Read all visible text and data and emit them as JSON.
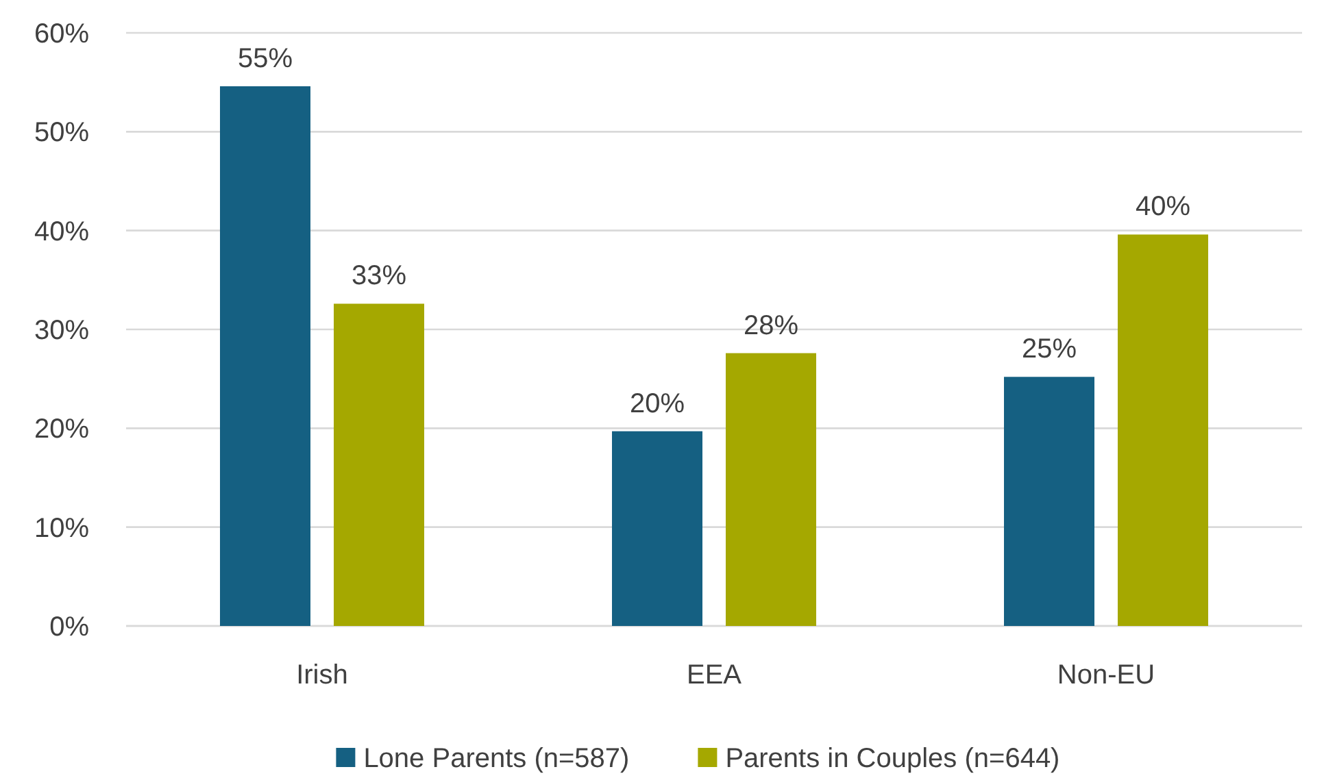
{
  "chart_data": {
    "type": "bar",
    "categories": [
      "Irish",
      "EEA",
      "Non-EU"
    ],
    "series": [
      {
        "name": "Lone Parents (n=587)",
        "color": "#156082",
        "values": [
          54.6,
          19.7,
          25.2
        ],
        "value_labels": [
          "55%",
          "20%",
          "25%"
        ]
      },
      {
        "name": "Parents in Couples (n=644)",
        "color": "#a5a800",
        "values": [
          32.6,
          27.6,
          39.6
        ],
        "value_labels": [
          "33%",
          "28%",
          "40%"
        ]
      }
    ],
    "ylim": [
      0,
      60
    ],
    "yticks": [
      {
        "value": 0,
        "label": "0%"
      },
      {
        "value": 10,
        "label": "10%"
      },
      {
        "value": 20,
        "label": "20%"
      },
      {
        "value": 30,
        "label": "30%"
      },
      {
        "value": 40,
        "label": "40%"
      },
      {
        "value": 50,
        "label": "50%"
      },
      {
        "value": 60,
        "label": "60%"
      }
    ],
    "grid": "y",
    "legend": "bottom"
  }
}
